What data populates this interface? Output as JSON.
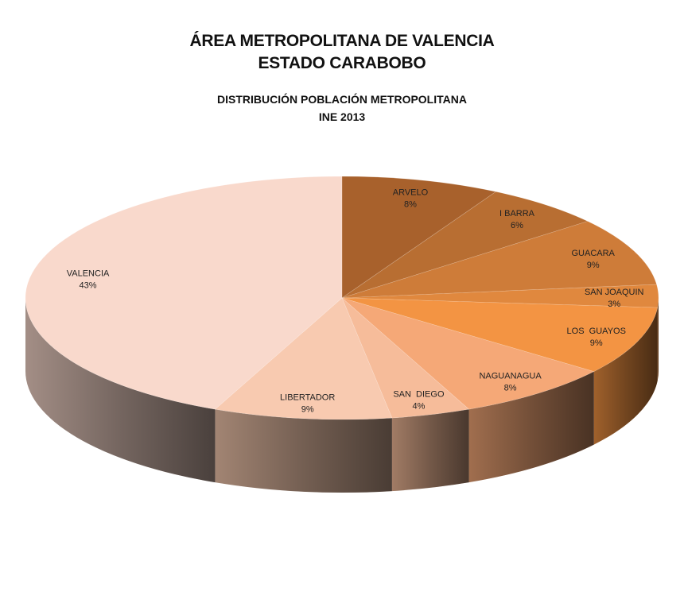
{
  "title_lines": [
    "ÁREA METROPOLITANA DE VALENCIA",
    "ESTADO CARABOBO"
  ],
  "subtitle_lines": [
    "DISTRIBUCIÓN POBLACIÓN METROPOLITANA",
    "INE 2013"
  ],
  "chart_data": {
    "type": "pie",
    "style": "3d",
    "legend": "none",
    "slices": [
      {
        "label": "ARVELO",
        "value": 8,
        "value_label": "8%",
        "color": "#A8612C"
      },
      {
        "label": "I BARRA",
        "value": 6,
        "value_label": "6%",
        "color": "#B86E32"
      },
      {
        "label": "GUACARA",
        "value": 9,
        "value_label": "9%",
        "color": "#CE7C39"
      },
      {
        "label": "SAN JOAQUIN",
        "value": 3,
        "value_label": "3%",
        "color": "#E0883E"
      },
      {
        "label": "LOS  GUAYOS",
        "value": 9,
        "value_label": "9%",
        "color": "#F39443"
      },
      {
        "label": "NAGUANAGUA",
        "value": 8,
        "value_label": "8%",
        "color": "#F5A877"
      },
      {
        "label": "SAN  DIEGO",
        "value": 4,
        "value_label": "4%",
        "color": "#F6BC9A"
      },
      {
        "label": "LIBERTADOR",
        "value": 9,
        "value_label": "9%",
        "color": "#F8CAB0"
      },
      {
        "label": "VALENCIA",
        "value": 43,
        "value_label": "43%",
        "color": "#F9D9CC"
      }
    ]
  }
}
